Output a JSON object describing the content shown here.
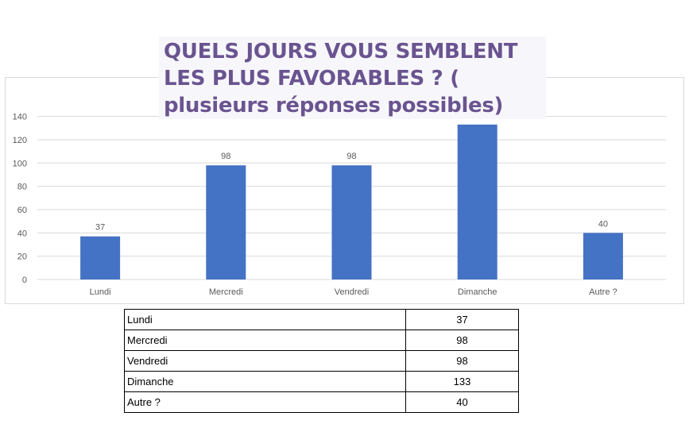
{
  "chart_data": {
    "type": "bar",
    "title": "QUELS JOURS VOUS SEMBLENT LES PLUS FAVORABLES ? ( plusieurs réponses possibles)",
    "categories": [
      "Lundi",
      "Mercredi",
      "Vendredi",
      "Dimanche",
      "Autre ?"
    ],
    "values": [
      37,
      98,
      98,
      133,
      40
    ],
    "data_labels": [
      "37",
      "98",
      "98",
      "",
      "40"
    ],
    "ylim": [
      0,
      140
    ],
    "yticks": [
      0,
      20,
      40,
      60,
      80,
      100,
      120,
      140
    ],
    "grid": true,
    "bar_color": "#4472c4"
  },
  "table": {
    "rows": [
      {
        "label": "Lundi",
        "value": "37"
      },
      {
        "label": "Mercredi",
        "value": "98"
      },
      {
        "label": "Vendredi",
        "value": "98"
      },
      {
        "label": "Dimanche",
        "value": "133"
      },
      {
        "label": "Autre ?",
        "value": "40"
      }
    ]
  }
}
